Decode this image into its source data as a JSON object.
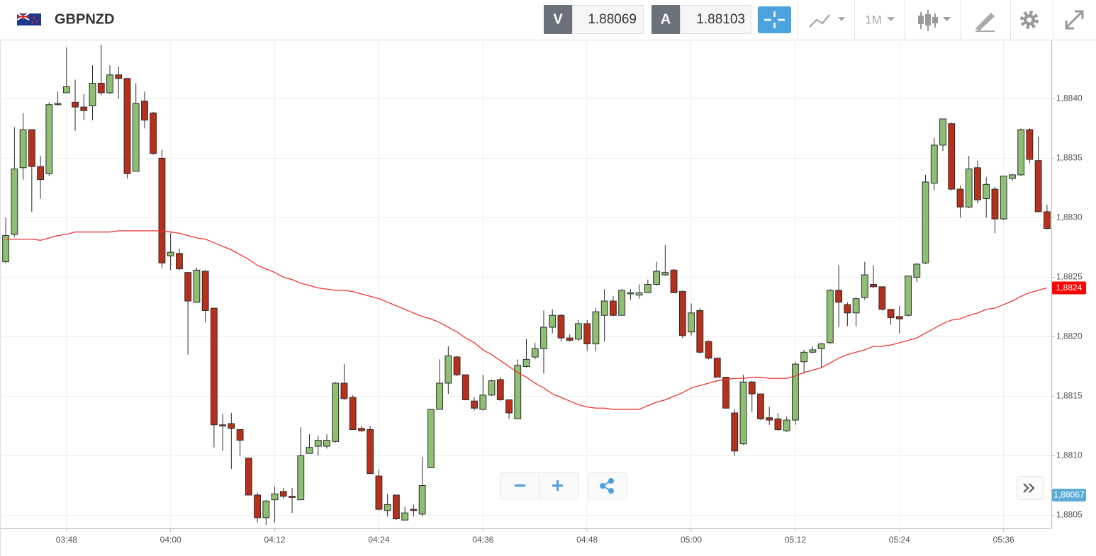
{
  "header": {
    "symbol": "GBPNZD",
    "bid_label": "V",
    "bid": "1.88069",
    "ask_label": "A",
    "ask": "1.88103",
    "timeframe": "1M"
  },
  "chart_data": {
    "type": "candlestick",
    "categories": [
      null,
      null,
      null,
      null,
      null,
      null,
      null,
      "03:48",
      null,
      null,
      null,
      null,
      null,
      null,
      null,
      null,
      null,
      null,
      null,
      "04:00",
      null,
      null,
      null,
      null,
      null,
      null,
      null,
      null,
      null,
      null,
      null,
      "04:12",
      null,
      null,
      null,
      null,
      null,
      null,
      null,
      null,
      null,
      null,
      null,
      "04:24",
      null,
      null,
      null,
      null,
      null,
      null,
      null,
      null,
      null,
      null,
      null,
      "04:36",
      null,
      null,
      null,
      null,
      null,
      null,
      null,
      null,
      null,
      null,
      null,
      "04:48",
      null,
      null,
      null,
      null,
      null,
      null,
      null,
      null,
      null,
      null,
      null,
      "05:00",
      null,
      null,
      null,
      null,
      null,
      null,
      null,
      null,
      null,
      null,
      null,
      "05:12",
      null,
      null,
      null,
      null,
      null,
      null,
      null,
      null,
      null,
      null,
      null,
      "05:24",
      null,
      null,
      null,
      null,
      null,
      null,
      null,
      null,
      null,
      null,
      null,
      "05:36",
      null,
      null,
      null,
      null,
      null
    ],
    "open": [
      1.88263,
      1.88286,
      1.88342,
      1.88374,
      1.88343,
      1.88337,
      1.88395,
      1.88405,
      1.88397,
      1.88393,
      1.88394,
      1.88413,
      1.88405,
      1.8842,
      1.88417,
      1.88339,
      1.88398,
      1.88388,
      1.8835,
      1.88268,
      1.8827,
      1.88254,
      1.88229,
      1.88255,
      1.88224,
      1.88126,
      1.88127,
      1.88122,
      1.88098,
      1.88067,
      1.88048,
      1.88063,
      1.8807,
      1.88066,
      1.88063,
      1.88102,
      1.88108,
      1.88108,
      1.88112,
      1.88161,
      1.88149,
      1.88123,
      1.88122,
      1.88083,
      1.88054,
      1.88067,
      1.88046,
      1.88055,
      1.88051,
      1.8809,
      1.88139,
      1.88161,
      1.88183,
      1.88168,
      1.88146,
      1.88139,
      1.88151,
      1.88164,
      1.88147,
      1.88131,
      1.88175,
      1.88183,
      1.8819,
      1.88208,
      1.88218,
      1.88199,
      1.88198,
      1.88211,
      1.88194,
      1.88218,
      1.8823,
      1.88218,
      1.88236,
      1.88235,
      1.88237,
      1.88244,
      1.88252,
      1.88256,
      1.88238,
      1.88204,
      1.88222,
      1.88196,
      1.88182,
      1.88166,
      1.88136,
      1.8811,
      1.88162,
      1.88152,
      1.88132,
      1.88131,
      1.88121,
      1.8813,
      1.88179,
      1.88187,
      1.8819,
      1.88195,
      1.88239,
      1.88227,
      1.8822,
      1.88233,
      1.88244,
      1.88242,
      1.88223,
      1.88217,
      1.88218,
      1.8825,
      1.88262,
      1.88329,
      1.88361,
      1.88379,
      1.88324,
      1.88309,
      1.88342,
      1.88316,
      1.88324,
      1.88299,
      1.88333,
      1.88336,
      1.88374,
      1.88348,
      1.88305
    ],
    "high": [
      1.883,
      1.88376,
      1.88388,
      1.88374,
      1.88352,
      1.88397,
      1.88406,
      1.88443,
      1.88416,
      1.88404,
      1.88428,
      1.88445,
      1.88428,
      1.88427,
      1.88417,
      1.88413,
      1.88406,
      1.88389,
      1.88357,
      1.88287,
      1.88274,
      1.88254,
      1.88258,
      1.88256,
      1.88224,
      1.88135,
      1.88136,
      1.88122,
      1.88098,
      1.88069,
      1.88063,
      1.88074,
      1.88073,
      1.88073,
      1.88124,
      1.88118,
      1.88117,
      1.88118,
      1.88162,
      1.88177,
      1.88151,
      1.88125,
      1.88125,
      1.88088,
      1.88068,
      1.88067,
      1.88057,
      1.88059,
      1.88099,
      1.88139,
      1.88181,
      1.88192,
      1.88184,
      1.88168,
      1.88149,
      1.88168,
      1.88164,
      1.88166,
      1.88147,
      1.88181,
      1.88198,
      1.88195,
      1.88222,
      1.88223,
      1.88219,
      1.88202,
      1.88214,
      1.88214,
      1.88224,
      1.8824,
      1.88234,
      1.8824,
      1.8824,
      1.88244,
      1.88248,
      1.88263,
      1.88277,
      1.88257,
      1.88239,
      1.88228,
      1.88224,
      1.88197,
      1.88182,
      1.88166,
      1.88139,
      1.88168,
      1.88163,
      1.88152,
      1.88141,
      1.88136,
      1.88133,
      1.88179,
      1.88189,
      1.88192,
      1.88195,
      1.8824,
      1.8826,
      1.88229,
      1.88233,
      1.88263,
      1.8826,
      1.88242,
      1.88223,
      1.88226,
      1.88251,
      1.88262,
      1.88336,
      1.88367,
      1.88383,
      1.8838,
      1.88327,
      1.88352,
      1.88348,
      1.88334,
      1.88326,
      1.88335,
      1.88337,
      1.88375,
      1.88375,
      1.88368,
      1.88311
    ],
    "low": [
      1.88262,
      1.88284,
      1.88332,
      1.88305,
      1.88316,
      1.88335,
      1.88394,
      1.88405,
      1.88373,
      1.88382,
      1.88382,
      1.88403,
      1.88404,
      1.884,
      1.88333,
      1.88339,
      1.88375,
      1.88353,
      1.88258,
      1.88256,
      1.88256,
      1.88185,
      1.88229,
      1.88212,
      1.88107,
      1.88104,
      1.88089,
      1.881,
      1.88067,
      1.88044,
      1.88042,
      1.88044,
      1.88064,
      1.88052,
      1.88063,
      1.88102,
      1.881,
      1.88106,
      1.88111,
      1.88147,
      1.88122,
      1.8812,
      1.88085,
      1.88054,
      1.88049,
      1.88046,
      1.88046,
      1.88049,
      1.88049,
      1.8809,
      1.88139,
      1.88152,
      1.88167,
      1.88147,
      1.88138,
      1.88138,
      1.8815,
      1.88146,
      1.88131,
      1.88131,
      1.88174,
      1.88181,
      1.88169,
      1.88203,
      1.88196,
      1.88196,
      1.88196,
      1.88188,
      1.88188,
      1.88196,
      1.88217,
      1.88218,
      1.88231,
      1.88232,
      1.88237,
      1.88243,
      1.88251,
      1.88237,
      1.88199,
      1.88201,
      1.88186,
      1.88181,
      1.88166,
      1.8814,
      1.881,
      1.88109,
      1.88137,
      1.8813,
      1.88126,
      1.88121,
      1.8812,
      1.88126,
      1.88169,
      1.88186,
      1.88174,
      1.88194,
      1.88208,
      1.88209,
      1.88209,
      1.88231,
      1.88241,
      1.88222,
      1.8821,
      1.88203,
      1.88217,
      1.88246,
      1.88261,
      1.88323,
      1.88356,
      1.88323,
      1.883,
      1.88308,
      1.88312,
      1.883,
      1.88287,
      1.88298,
      1.88331,
      1.88335,
      1.88346,
      1.88305,
      1.8829
    ],
    "close": [
      1.88285,
      1.88341,
      1.88374,
      1.88343,
      1.88332,
      1.88395,
      1.88396,
      1.8841,
      1.88393,
      1.8839,
      1.88413,
      1.88405,
      1.8842,
      1.88417,
      1.88337,
      1.88396,
      1.88382,
      1.88354,
      1.88262,
      1.88271,
      1.88257,
      1.8823,
      1.88256,
      1.88222,
      1.88126,
      1.88125,
      1.88123,
      1.88113,
      1.88067,
      1.88048,
      1.88062,
      1.88068,
      1.88066,
      1.88065,
      1.881,
      1.88107,
      1.88113,
      1.88113,
      1.88161,
      1.88148,
      1.88122,
      1.88121,
      1.88085,
      1.88055,
      1.88059,
      1.88047,
      1.88052,
      1.88054,
      1.88075,
      1.88139,
      1.88161,
      1.88184,
      1.88168,
      1.88147,
      1.8814,
      1.88151,
      1.88163,
      1.88147,
      1.88136,
      1.88176,
      1.88181,
      1.8819,
      1.88208,
      1.88218,
      1.88199,
      1.88197,
      1.88211,
      1.88194,
      1.88221,
      1.8823,
      1.88218,
      1.88239,
      1.88237,
      1.88237,
      1.88244,
      1.88255,
      1.88254,
      1.88237,
      1.88201,
      1.8822,
      1.88187,
      1.88182,
      1.88166,
      1.8814,
      1.88104,
      1.88162,
      1.88152,
      1.88131,
      1.8813,
      1.88122,
      1.8813,
      1.88177,
      1.88187,
      1.88189,
      1.88194,
      1.88239,
      1.88229,
      1.8822,
      1.88232,
      1.88252,
      1.88242,
      1.88223,
      1.88216,
      1.88215,
      1.88251,
      1.88261,
      1.8833,
      1.88361,
      1.88383,
      1.88324,
      1.88309,
      1.88341,
      1.88315,
      1.88328,
      1.88299,
      1.88335,
      1.88336,
      1.88374,
      1.88349,
      1.88305,
      1.88291
    ],
    "up_color": "#8fbf73",
    "down_color": "#b8301b",
    "border_color": "#2b2b2b",
    "ma": {
      "color": "#ee3333",
      "values": [
        1.88282,
        1.88282,
        1.88282,
        1.88282,
        1.88281,
        1.88283,
        1.88285,
        1.88286,
        1.88288,
        1.88288,
        1.88288,
        1.88288,
        1.88288,
        1.88289,
        1.88289,
        1.88289,
        1.88289,
        1.88289,
        1.88289,
        1.88288,
        1.88287,
        1.88285,
        1.88283,
        1.88282,
        1.88279,
        1.88276,
        1.88273,
        1.88269,
        1.88265,
        1.8826,
        1.88257,
        1.88254,
        1.8825,
        1.88248,
        1.88245,
        1.88243,
        1.88241,
        1.8824,
        1.88239,
        1.88239,
        1.88238,
        1.88236,
        1.88234,
        1.88232,
        1.88229,
        1.88226,
        1.88223,
        1.8822,
        1.88217,
        1.88215,
        1.88212,
        1.88208,
        1.88204,
        1.88199,
        1.88195,
        1.88189,
        1.88185,
        1.8818,
        1.88175,
        1.8817,
        1.88166,
        1.88161,
        1.88157,
        1.88152,
        1.88149,
        1.88146,
        1.88143,
        1.88141,
        1.8814,
        1.8814,
        1.88139,
        1.88139,
        1.88139,
        1.88139,
        1.88142,
        1.88145,
        1.88147,
        1.8815,
        1.88153,
        1.88157,
        1.88159,
        1.88161,
        1.88163,
        1.88164,
        1.88165,
        1.88165,
        1.88166,
        1.88166,
        1.88165,
        1.88165,
        1.88165,
        1.88167,
        1.8817,
        1.88172,
        1.88174,
        1.88178,
        1.88182,
        1.88185,
        1.88187,
        1.88189,
        1.88192,
        1.88192,
        1.88193,
        1.88195,
        1.88197,
        1.88199,
        1.88203,
        1.88207,
        1.88211,
        1.88214,
        1.88215,
        1.88218,
        1.8822,
        1.88223,
        1.88224,
        1.88227,
        1.8823,
        1.88234,
        1.88237,
        1.88239,
        1.88241
      ]
    },
    "markers": [
      {
        "value": 1.88241,
        "label": "1,8824",
        "color": "#ff0000"
      },
      {
        "value": 1.88067,
        "label": "1,88067",
        "color": "#5aabd8"
      }
    ],
    "ylim": [
      1.88039,
      1.88449
    ],
    "yticks": [
      {
        "value": 1.8805,
        "label": "1,8805"
      },
      {
        "value": 1.881,
        "label": "1,8810"
      },
      {
        "value": 1.8815,
        "label": "1,8815"
      },
      {
        "value": 1.882,
        "label": "1,8820"
      },
      {
        "value": 1.8825,
        "label": "1,8825"
      },
      {
        "value": 1.883,
        "label": "1,8830"
      },
      {
        "value": 1.8835,
        "label": "1,8835"
      },
      {
        "value": 1.884,
        "label": "1,8840"
      }
    ],
    "grid": true
  }
}
